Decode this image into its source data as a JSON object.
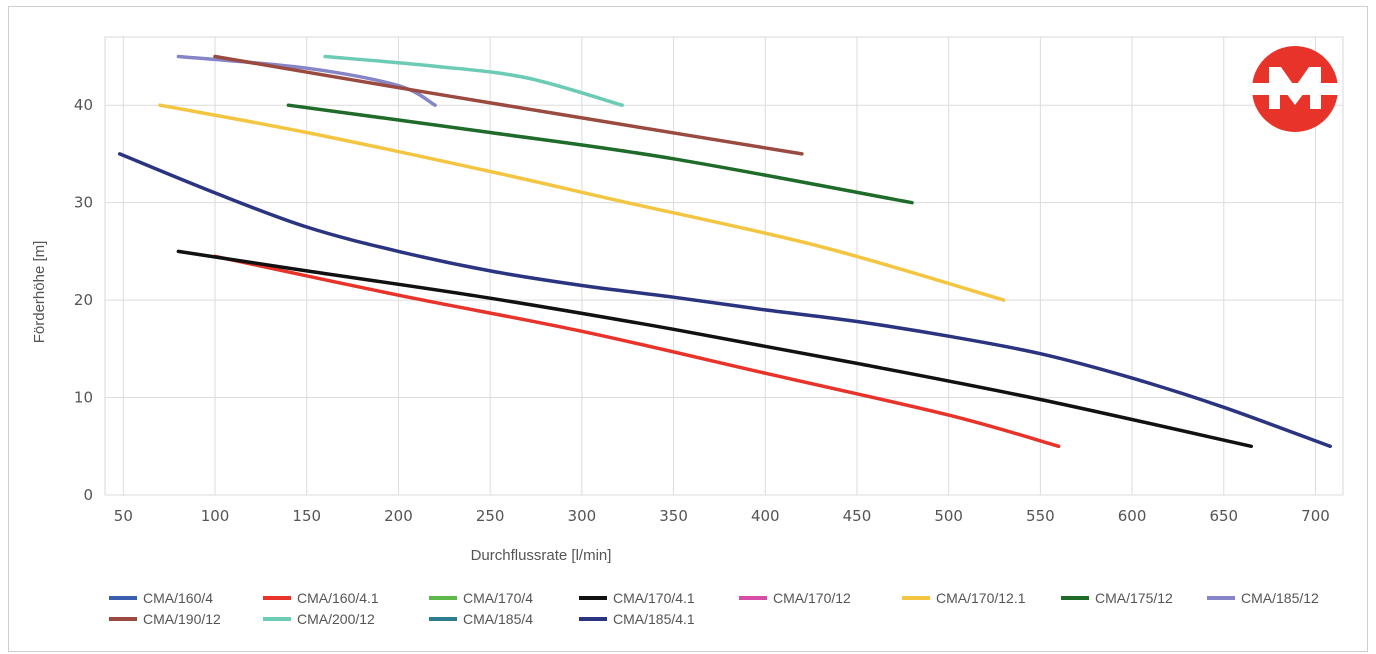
{
  "chart_data": {
    "type": "line",
    "title": "",
    "xlabel": "Durchflussrate [l/min]",
    "ylabel": "Förderhöhe [m]",
    "xlim": [
      40,
      715
    ],
    "ylim": [
      0,
      47
    ],
    "x_ticks": [
      50,
      100,
      150,
      200,
      250,
      300,
      350,
      400,
      450,
      500,
      550,
      600,
      650,
      700
    ],
    "y_ticks": [
      0,
      10,
      20,
      30,
      40
    ],
    "grid": true,
    "legend_position": "bottom",
    "series": [
      {
        "name": "CMA/160/4",
        "color": "#3a5fae",
        "points": []
      },
      {
        "name": "CMA/160/4.1",
        "color": "#e8332b",
        "points": [
          [
            100,
            24.5
          ],
          [
            200,
            20.5
          ],
          [
            300,
            16.8
          ],
          [
            400,
            12.5
          ],
          [
            500,
            8.2
          ],
          [
            560,
            5
          ]
        ]
      },
      {
        "name": "CMA/170/4",
        "color": "#5cb848",
        "points": []
      },
      {
        "name": "CMA/170/4.1",
        "color": "#111111",
        "points": [
          [
            80,
            25
          ],
          [
            150,
            23
          ],
          [
            250,
            20.2
          ],
          [
            350,
            17
          ],
          [
            450,
            13.5
          ],
          [
            550,
            9.8
          ],
          [
            665,
            5
          ]
        ]
      },
      {
        "name": "CMA/170/12",
        "color": "#d44ea6",
        "points": []
      },
      {
        "name": "CMA/170/12.1",
        "color": "#f3c540",
        "points": [
          [
            70,
            40
          ],
          [
            150,
            37.2
          ],
          [
            250,
            33.2
          ],
          [
            320,
            30.2
          ],
          [
            430,
            25.5
          ],
          [
            530,
            20
          ]
        ]
      },
      {
        "name": "CMA/175/12",
        "color": "#1e6b2a",
        "points": [
          [
            140,
            40
          ],
          [
            250,
            37.2
          ],
          [
            350,
            34.5
          ],
          [
            480,
            30
          ]
        ]
      },
      {
        "name": "CMA/185/12",
        "color": "#8585c8",
        "points": [
          [
            80,
            45
          ],
          [
            150,
            43.8
          ],
          [
            200,
            42
          ],
          [
            220,
            40
          ]
        ]
      },
      {
        "name": "CMA/190/12",
        "color": "#9a4a3f",
        "points": [
          [
            100,
            45
          ],
          [
            200,
            41.8
          ],
          [
            300,
            38.7
          ],
          [
            420,
            35
          ]
        ]
      },
      {
        "name": "CMA/200/12",
        "color": "#6ccbb5",
        "points": [
          [
            160,
            45
          ],
          [
            220,
            44
          ],
          [
            270,
            42.8
          ],
          [
            322,
            40
          ]
        ]
      },
      {
        "name": "CMA/185/4",
        "color": "#2d7d8e",
        "points": []
      },
      {
        "name": "CMA/185/4.1",
        "color": "#2b3480",
        "points": [
          [
            48,
            35
          ],
          [
            100,
            31
          ],
          [
            150,
            27.5
          ],
          [
            200,
            25
          ],
          [
            250,
            23
          ],
          [
            300,
            21.5
          ],
          [
            350,
            20.3
          ],
          [
            400,
            19
          ],
          [
            450,
            17.8
          ],
          [
            500,
            16.3
          ],
          [
            550,
            14.5
          ],
          [
            600,
            12
          ],
          [
            650,
            9
          ],
          [
            708,
            5
          ]
        ]
      }
    ]
  },
  "logo": {
    "letter": "M",
    "color": "#e8332b"
  }
}
